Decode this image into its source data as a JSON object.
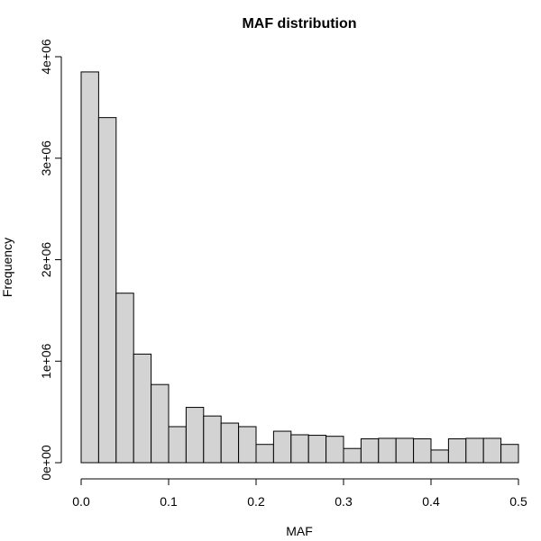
{
  "chart_data": {
    "type": "bar",
    "title": "MAF distribution",
    "xlabel": "MAF",
    "ylabel": "Frequency",
    "bin_width": 0.02,
    "bin_start": 0.0,
    "values": [
      3850000,
      3400000,
      1670000,
      1070000,
      770000,
      355000,
      545000,
      460000,
      390000,
      355000,
      180000,
      310000,
      275000,
      270000,
      260000,
      140000,
      235000,
      240000,
      240000,
      235000,
      125000,
      235000,
      240000,
      240000,
      180000
    ],
    "xlim": [
      0,
      0.5
    ],
    "ylim": [
      0,
      4000000
    ],
    "x_ticks": [
      0.0,
      0.1,
      0.2,
      0.3,
      0.4,
      0.5
    ],
    "x_tick_labels": [
      "0.0",
      "0.1",
      "0.2",
      "0.3",
      "0.4",
      "0.5"
    ],
    "y_ticks": [
      0,
      1000000,
      2000000,
      3000000,
      4000000
    ],
    "y_tick_labels": [
      "0e+00",
      "1e+06",
      "2e+06",
      "3e+06",
      "4e+06"
    ],
    "bar_color": "#d3d3d3"
  }
}
